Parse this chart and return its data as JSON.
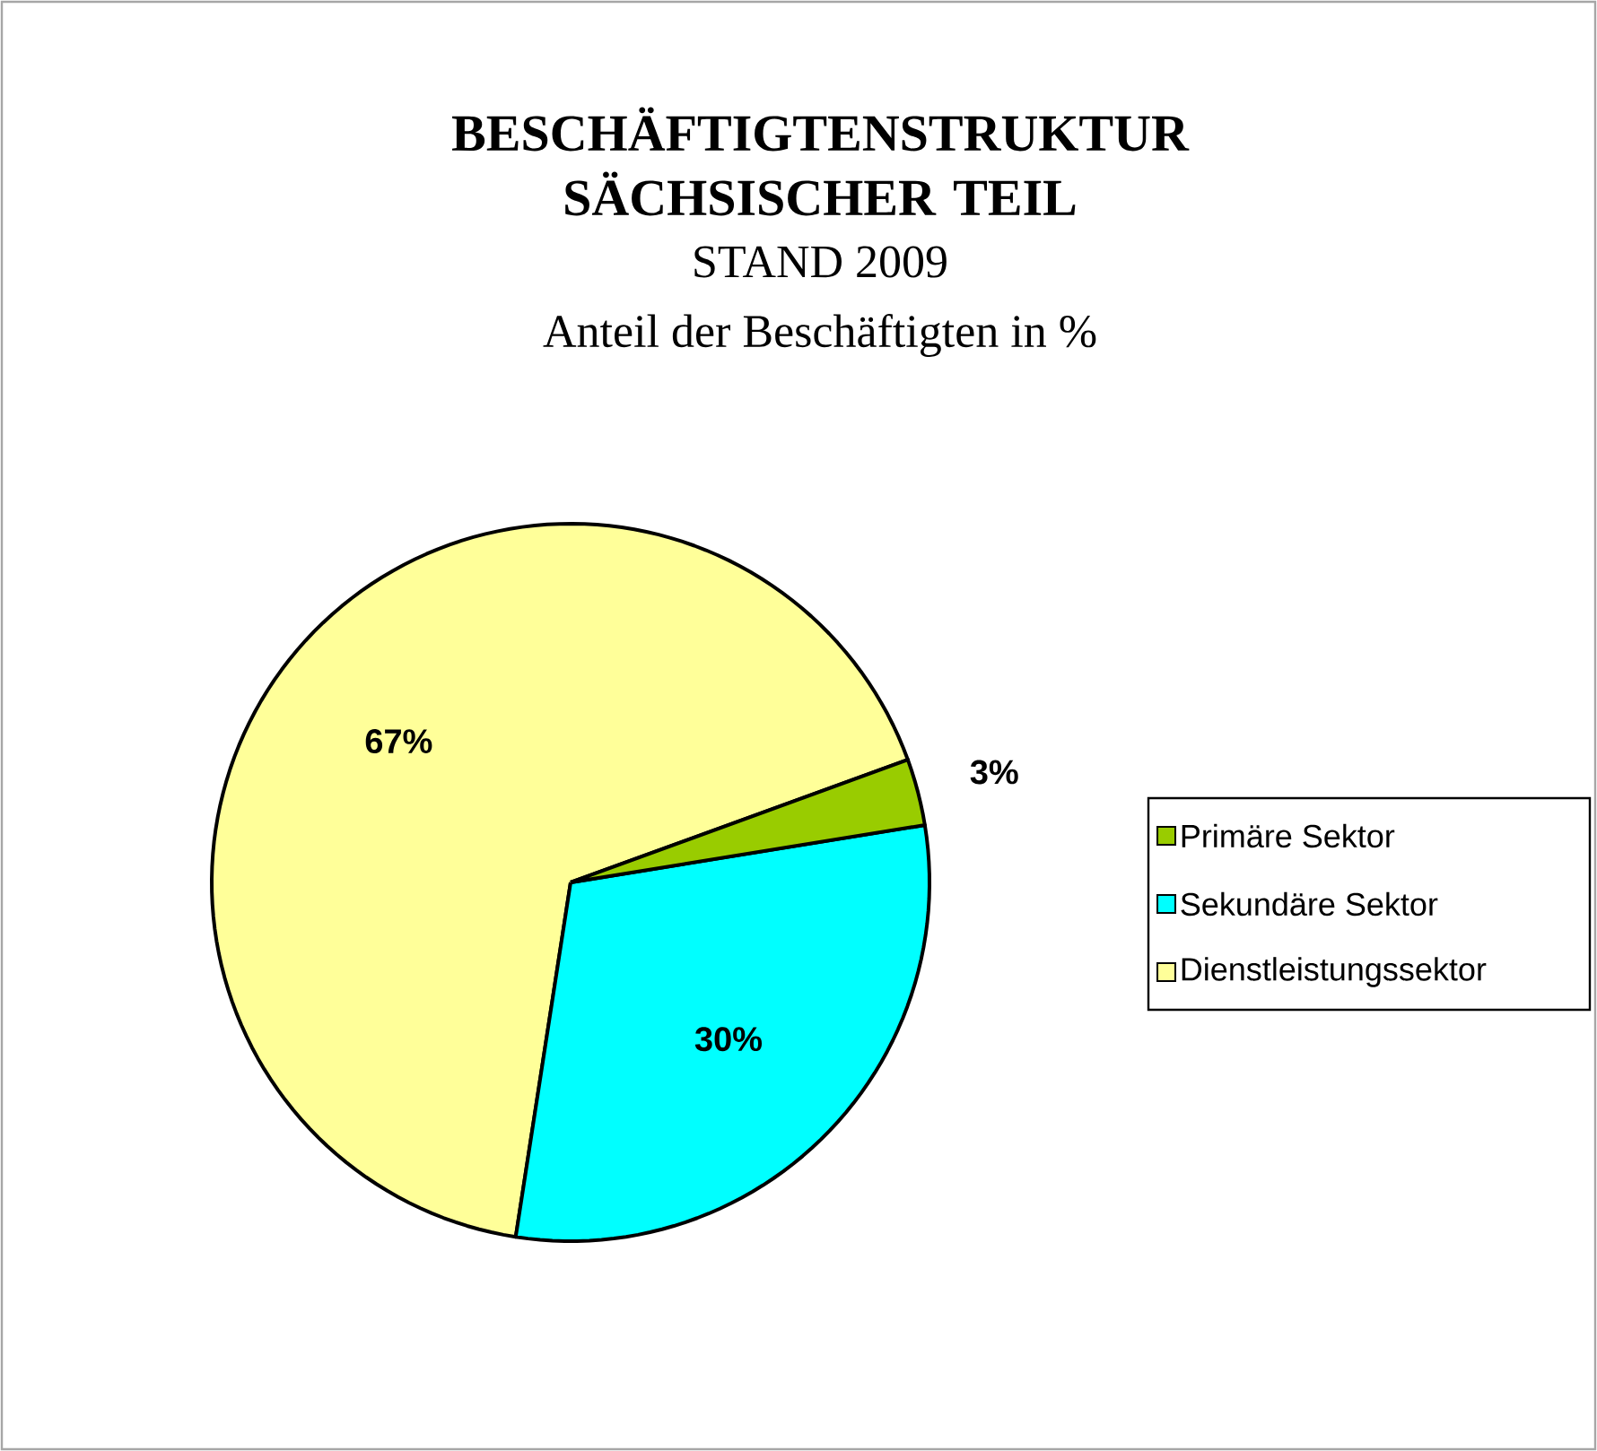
{
  "chart_data": {
    "type": "pie",
    "title": "BESCHÄFTIGTENSTRUKTUR SÄCHSISCHER TEIL",
    "subtitle": "STAND 2009",
    "annotations": [
      "Anteil der Beschäftigten in %"
    ],
    "categories": [
      "Primäre Sektor",
      "Sekundäre Sektor",
      "Dienstleistungssektor"
    ],
    "values": [
      3,
      30,
      67
    ],
    "value_labels": [
      "3%",
      "30%",
      "67%"
    ],
    "colors": [
      "#99cc00",
      "#00ffff",
      "#ffff99"
    ],
    "legend": "right"
  }
}
